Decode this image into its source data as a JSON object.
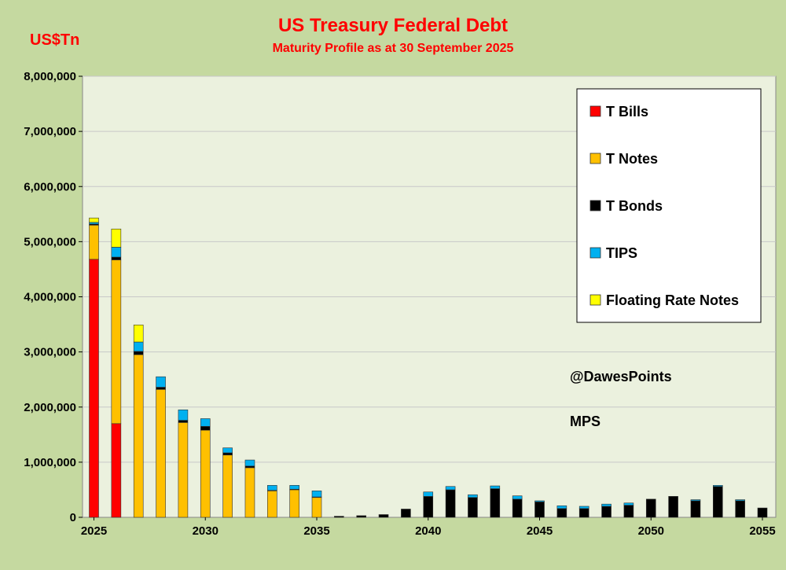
{
  "chart_data": {
    "type": "bar",
    "stacked": true,
    "title": "US Treasury Federal Debt",
    "subtitle": "Maturity Profile  as at 30 September 2025",
    "ylabel": "US$Tn",
    "xlabel": "",
    "ylim": [
      0,
      8000000
    ],
    "y_ticks": [
      "0",
      "1,000,000",
      "2,000,000",
      "3,000,000",
      "4,000,000",
      "5,000,000",
      "6,000,000",
      "7,000,000",
      "8,000,000"
    ],
    "x_ticks": [
      "2025",
      "2030",
      "2035",
      "2040",
      "2045",
      "2050",
      "2055"
    ],
    "grid": true,
    "legend_position": "top-right",
    "categories": [
      "2025",
      "2026",
      "2027",
      "2028",
      "2029",
      "2030",
      "2031",
      "2032",
      "2033",
      "2034",
      "2035",
      "2036",
      "2037",
      "2038",
      "2039",
      "2040",
      "2041",
      "2042",
      "2043",
      "2044",
      "2045",
      "2046",
      "2047",
      "2048",
      "2049",
      "2050",
      "2051",
      "2052",
      "2053",
      "2054",
      "2055"
    ],
    "series": [
      {
        "name": "T Bills",
        "color": "#ff0000",
        "values": [
          4680000,
          1700000,
          0,
          0,
          0,
          0,
          0,
          0,
          0,
          0,
          0,
          0,
          0,
          0,
          0,
          0,
          0,
          0,
          0,
          0,
          0,
          0,
          0,
          0,
          0,
          0,
          0,
          0,
          0,
          0,
          0
        ]
      },
      {
        "name": "T Notes",
        "color": "#ffc000",
        "values": [
          620000,
          2970000,
          2950000,
          2320000,
          1720000,
          1580000,
          1130000,
          900000,
          480000,
          500000,
          360000,
          0,
          0,
          0,
          0,
          0,
          0,
          0,
          0,
          0,
          0,
          0,
          0,
          0,
          0,
          0,
          0,
          0,
          0,
          0,
          0
        ]
      },
      {
        "name": "T Bonds",
        "color": "#000000",
        "values": [
          20000,
          50000,
          60000,
          40000,
          40000,
          70000,
          40000,
          30000,
          10000,
          10000,
          10000,
          20000,
          30000,
          50000,
          150000,
          380000,
          500000,
          360000,
          520000,
          330000,
          280000,
          160000,
          160000,
          200000,
          220000,
          330000,
          380000,
          300000,
          560000,
          300000,
          170000
        ]
      },
      {
        "name": "TIPS",
        "color": "#00b0f0",
        "values": [
          30000,
          180000,
          170000,
          190000,
          190000,
          140000,
          90000,
          110000,
          90000,
          70000,
          110000,
          0,
          0,
          0,
          0,
          80000,
          60000,
          50000,
          50000,
          60000,
          20000,
          50000,
          40000,
          40000,
          40000,
          0,
          0,
          20000,
          20000,
          20000,
          0
        ]
      },
      {
        "name": "Floating Rate Notes",
        "color": "#ffff00",
        "values": [
          80000,
          330000,
          310000,
          0,
          0,
          0,
          0,
          0,
          0,
          0,
          0,
          0,
          0,
          0,
          0,
          0,
          0,
          0,
          0,
          0,
          0,
          0,
          0,
          0,
          0,
          0,
          0,
          0,
          0,
          0,
          0
        ]
      }
    ]
  },
  "annotations": {
    "handle": "@DawesPoints",
    "initials": "MPS"
  }
}
